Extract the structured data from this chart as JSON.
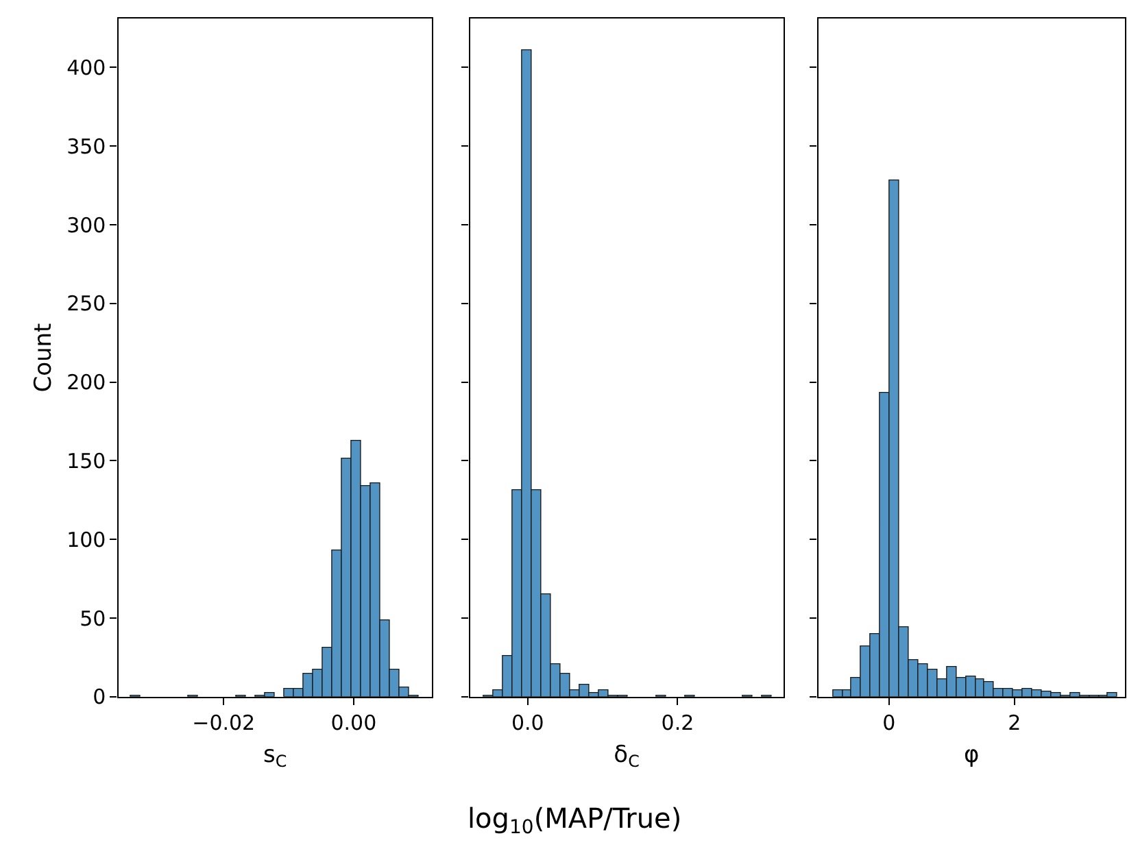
{
  "chart_data": [
    {
      "type": "histogram",
      "xlabel": "s$_{C}$",
      "ylabel": "Count",
      "color": "#5294c3",
      "bins": [
        -0.0342,
        -0.03273,
        -0.03126,
        -0.02979,
        -0.02832,
        -0.02685,
        -0.02538,
        -0.02391,
        -0.02244,
        -0.02097,
        -0.0195,
        -0.01803,
        -0.01656,
        -0.01509,
        -0.01362,
        -0.01215,
        -0.01068,
        -0.00921,
        -0.00774,
        -0.00627,
        -0.0048,
        -0.00333,
        -0.00186,
        -0.00039,
        0.00108,
        0.00255,
        0.00402,
        0.00549,
        0.00696,
        0.00843,
        0.0099
      ],
      "values": [
        1,
        0,
        0,
        0,
        0,
        0,
        1,
        0,
        0,
        0,
        0,
        1,
        0,
        1,
        2,
        0,
        5,
        5,
        15,
        17,
        31,
        93,
        151,
        163,
        134,
        136,
        49,
        17,
        6,
        1
      ],
      "xlim": [
        -0.0362,
        0.012
      ],
      "xticks": [
        {
          "value": -0.02,
          "label": "−0.02"
        },
        {
          "value": 0,
          "label": "0.00"
        }
      ],
      "ylim": [
        0,
        431
      ],
      "yticks": [
        0,
        50,
        100,
        150,
        200,
        250,
        300,
        350,
        400
      ]
    },
    {
      "type": "histogram",
      "xlabel": "δ$_{C}$",
      "color": "#5294c3",
      "bins": [
        -0.0589,
        -0.0461,
        -0.0333,
        -0.0205,
        -0.0077,
        0.0051,
        0.0179,
        0.0307,
        0.0435,
        0.0563,
        0.0691,
        0.0819,
        0.0947,
        0.1075,
        0.1203,
        0.1331,
        0.1459,
        0.1587,
        0.1715,
        0.1843,
        0.1971,
        0.2099,
        0.2227,
        0.2355,
        0.2483,
        0.2611,
        0.2739,
        0.2867,
        0.2995,
        0.3123,
        0.3251
      ],
      "values": [
        1,
        4,
        26,
        131,
        411,
        131,
        65,
        21,
        15,
        4,
        8,
        2,
        4,
        1,
        1,
        0,
        0,
        0,
        1,
        0,
        0,
        1,
        0,
        0,
        0,
        0,
        0,
        1,
        0,
        1
      ],
      "xlim": [
        -0.077,
        0.341
      ],
      "xticks": [
        {
          "value": 0,
          "label": "0.0"
        },
        {
          "value": 0.2,
          "label": "0.2"
        }
      ],
      "ylim": [
        0,
        431
      ],
      "yticks": [
        0,
        50,
        100,
        150,
        200,
        250,
        300,
        350,
        400
      ],
      "tick_labels": "x",
      "annotations": [
        "log$_{10}$(MAP/True)"
      ]
    },
    {
      "type": "histogram",
      "xlabel": "φ",
      "color": "#5294c3",
      "bins": [
        -0.898,
        -0.7465,
        -0.595,
        -0.4435,
        -0.292,
        -0.1405,
        0.011,
        0.1625,
        0.314,
        0.4655,
        0.617,
        0.7685,
        0.92,
        1.0715,
        1.223,
        1.3745,
        1.526,
        1.6775,
        1.829,
        1.9805,
        2.132,
        2.2835,
        2.435,
        2.5865,
        2.738,
        2.8895,
        3.041,
        3.1925,
        3.344,
        3.4955,
        3.647
      ],
      "values": [
        4,
        4,
        12,
        32,
        40,
        193,
        328,
        44,
        23,
        21,
        17,
        11,
        19,
        12,
        13,
        11,
        9,
        5,
        5,
        4,
        5,
        4,
        3,
        2,
        1,
        2,
        1,
        1,
        1,
        2
      ],
      "xlim": [
        -1.13,
        3.76
      ],
      "xticks": [
        0,
        2
      ],
      "ylim": [
        0,
        431
      ],
      "yticks": [
        0,
        50,
        100,
        150,
        200,
        250,
        300,
        350,
        400
      ],
      "tick_labels": "x"
    }
  ]
}
